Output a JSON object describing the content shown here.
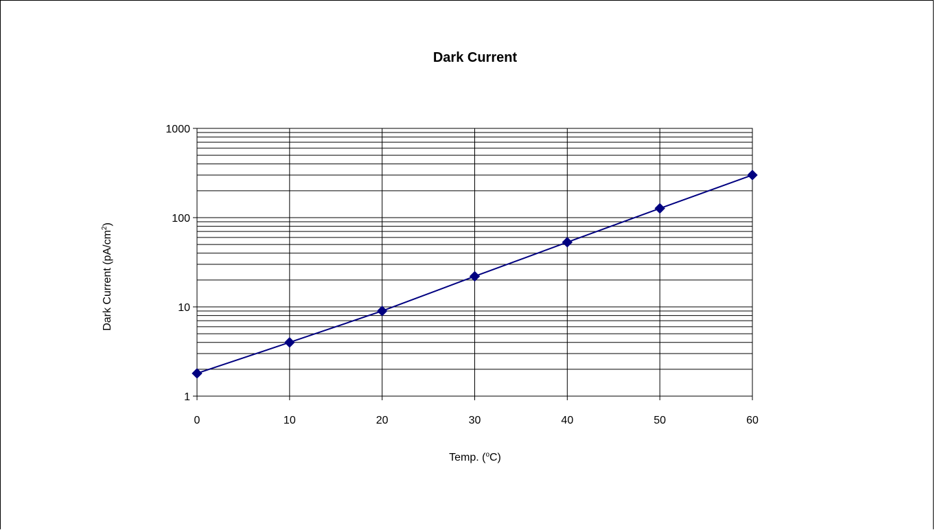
{
  "chart_data": {
    "type": "line",
    "title": "Dark Current",
    "xlabel": "Temp. (",
    "xlabel_sup": "o",
    "xlabel_end": "C)",
    "ylabel": "Dark Current  (pA/cm",
    "ylabel_sup": "2",
    "ylabel_end": ")",
    "y_scale": "log",
    "grid": true,
    "legend": "none",
    "xlim": [
      0,
      60
    ],
    "ylim": [
      1,
      1000
    ],
    "x_ticks": [
      "0",
      "10",
      "20",
      "30",
      "40",
      "50",
      "60"
    ],
    "y_ticks": [
      "1",
      "10",
      "100",
      "1000"
    ],
    "series": [
      {
        "x": [
          0,
          10,
          20,
          30,
          40,
          50,
          60
        ],
        "values": [
          1.8,
          4,
          9,
          22,
          53,
          127,
          300
        ],
        "color": "#000080",
        "marker": "diamond"
      }
    ]
  }
}
